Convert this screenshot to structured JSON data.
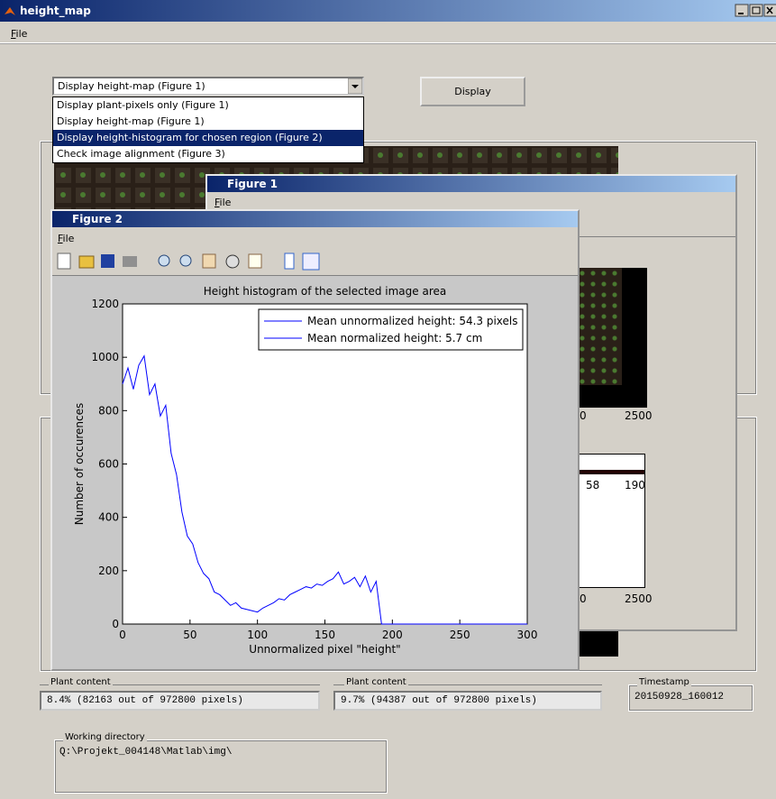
{
  "main_window": {
    "title": "height_map",
    "menu": "File",
    "dropdown": {
      "selected": "Display height-map (Figure 1)",
      "options": [
        "Display plant-pixels only (Figure 1)",
        "Display height-map (Figure 1)",
        "Display height-histogram for chosen region (Figure 2)",
        "Check image alignment (Figure 3)"
      ],
      "highlighted": 2
    },
    "button": "Display",
    "plant_content_1": {
      "label": "Plant content",
      "value": "8.4% (82163 out of 972800 pixels)"
    },
    "plant_content_2": {
      "label": "Plant content",
      "value": "9.7% (94387 out of 972800 pixels)"
    },
    "timestamp": {
      "label": "Timestamp",
      "value": "20150928_160012"
    },
    "working_directory": {
      "label": "Working directory",
      "value": "Q:\\Projekt_004148\\Matlab\\img\\"
    }
  },
  "figure1": {
    "title": "Figure 1",
    "menu": "File",
    "tick_labels": [
      "0",
      "2500",
      "58",
      "190",
      "0",
      "2500"
    ]
  },
  "figure2": {
    "title": "Figure 2",
    "menu": "File"
  },
  "chart_data": {
    "type": "line",
    "title": "Height histogram of the selected image area",
    "x_label": "Unnormalized pixel \"height\"",
    "y_label": "Number of occurences",
    "legend": [
      "Mean unnormalized height: 54.3 pixels",
      "Mean normalized height: 5.7 cm"
    ],
    "color": "#0000ff",
    "x": [
      0,
      4,
      8,
      12,
      16,
      20,
      24,
      28,
      32,
      36,
      40,
      44,
      48,
      52,
      56,
      60,
      64,
      68,
      72,
      76,
      80,
      84,
      88,
      92,
      96,
      100,
      104,
      108,
      112,
      116,
      120,
      124,
      128,
      132,
      136,
      140,
      144,
      148,
      152,
      156,
      160,
      164,
      168,
      172,
      176,
      180,
      184,
      188,
      192,
      300
    ],
    "values": [
      900,
      960,
      880,
      970,
      1005,
      860,
      900,
      780,
      820,
      640,
      560,
      420,
      330,
      300,
      230,
      190,
      170,
      120,
      110,
      90,
      70,
      80,
      60,
      55,
      50,
      45,
      60,
      70,
      80,
      95,
      90,
      110,
      120,
      130,
      140,
      135,
      150,
      145,
      160,
      170,
      195,
      150,
      160,
      175,
      140,
      180,
      120,
      160,
      0,
      0
    ],
    "xlim": [
      0,
      300
    ],
    "xticks": [
      0,
      50,
      100,
      150,
      200,
      250,
      300
    ],
    "ylim": [
      0,
      1200
    ],
    "yticks": [
      0,
      200,
      400,
      600,
      800,
      1000,
      1200
    ]
  }
}
